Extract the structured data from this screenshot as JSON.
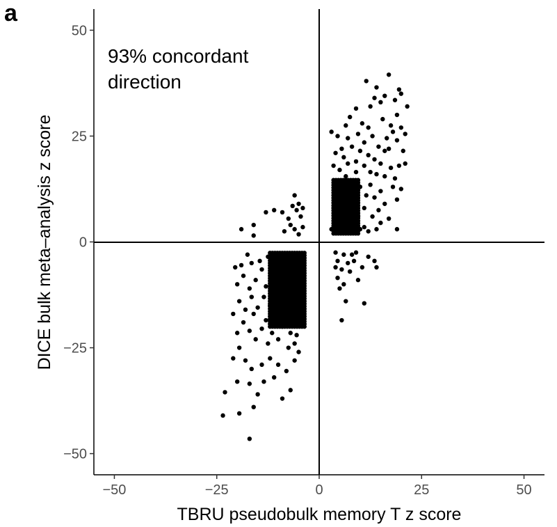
{
  "chart_data": {
    "type": "scatter",
    "panel_label": "a",
    "annotation_lines": [
      "93% concordant",
      "direction"
    ],
    "xlabel": "TBRU pseudobulk memory T z score",
    "ylabel": "DICE bulk meta–analysis z score",
    "xlim": [
      -55,
      55
    ],
    "ylim": [
      -55,
      55
    ],
    "x_ticks": [
      -50,
      -25,
      0,
      25,
      50
    ],
    "x_tick_labels": [
      "−50",
      "−25",
      "0",
      "25",
      "50"
    ],
    "y_ticks": [
      -50,
      -25,
      0,
      25,
      50
    ],
    "y_tick_labels": [
      "−50",
      "−25",
      "0",
      "25",
      "50"
    ],
    "reference_lines": {
      "x": 0,
      "y": 0
    },
    "grid": false,
    "point_color": "#000000",
    "series": [
      {
        "points": [
          [
            17,
            39.5
          ],
          [
            11.5,
            38
          ],
          [
            14,
            36.5
          ],
          [
            19.5,
            36
          ],
          [
            20,
            35
          ],
          [
            21.5,
            32
          ],
          [
            12.5,
            32
          ],
          [
            9,
            31.5
          ],
          [
            13.5,
            34
          ],
          [
            16,
            34.5
          ],
          [
            18.5,
            33.5
          ],
          [
            15,
            33
          ],
          [
            7.5,
            29.5
          ],
          [
            6.5,
            27.5
          ],
          [
            10.5,
            28
          ],
          [
            12,
            27
          ],
          [
            15.5,
            29
          ],
          [
            17.5,
            27.5
          ],
          [
            19,
            30
          ],
          [
            20,
            27
          ],
          [
            21,
            25.5
          ],
          [
            16.5,
            24.5
          ],
          [
            18,
            26
          ],
          [
            3,
            26
          ],
          [
            4.5,
            25
          ],
          [
            7,
            24.5
          ],
          [
            9.5,
            25.5
          ],
          [
            11,
            23.5
          ],
          [
            13,
            25
          ],
          [
            14.5,
            22.5
          ],
          [
            16,
            21.5
          ],
          [
            20.5,
            21.5
          ],
          [
            19,
            24
          ],
          [
            17,
            22
          ],
          [
            4,
            21
          ],
          [
            5.5,
            22
          ],
          [
            6,
            20
          ],
          [
            8,
            22.5
          ],
          [
            10,
            21.5
          ],
          [
            12,
            20.5
          ],
          [
            13.5,
            19.5
          ],
          [
            15,
            18.5
          ],
          [
            17.5,
            17.5
          ],
          [
            19.5,
            18
          ],
          [
            18.5,
            15
          ],
          [
            21,
            18.5
          ],
          [
            3.5,
            18
          ],
          [
            5,
            17
          ],
          [
            7,
            18.5
          ],
          [
            9,
            19
          ],
          [
            11,
            18
          ],
          [
            12.5,
            16.5
          ],
          [
            14,
            16
          ],
          [
            16,
            15.5
          ],
          [
            18,
            13
          ],
          [
            20,
            12.5
          ],
          [
            15,
            12
          ],
          [
            19,
            10
          ],
          [
            16,
            9
          ],
          [
            14.5,
            7.5
          ],
          [
            13,
            6
          ],
          [
            15,
            4.5
          ],
          [
            17,
            5.5
          ],
          [
            19,
            3
          ],
          [
            14,
            3
          ],
          [
            12,
            2.5
          ],
          [
            11,
            3.5
          ],
          [
            -13,
            7
          ],
          [
            -11,
            7.5
          ],
          [
            -9,
            7
          ],
          [
            -19,
            3
          ],
          [
            -16,
            4
          ],
          [
            -16,
            1.5
          ],
          [
            -6,
            11
          ],
          [
            -5,
            9
          ],
          [
            -4.5,
            6
          ],
          [
            -5.5,
            7.5
          ],
          [
            -7,
            4
          ],
          [
            -8.5,
            2.5
          ],
          [
            -4,
            3.5
          ],
          [
            -6,
            3
          ],
          [
            -5,
            1.8
          ],
          [
            -7.5,
            5.5
          ],
          [
            -6.5,
            8.5
          ],
          [
            -4,
            8
          ],
          [
            -23,
            -35.5
          ],
          [
            -23.5,
            -41
          ],
          [
            -19.5,
            -40.5
          ],
          [
            -17,
            -46.5
          ],
          [
            -16,
            -39
          ],
          [
            -15,
            -36
          ],
          [
            -13.5,
            -33
          ],
          [
            -11,
            -32
          ],
          [
            -7,
            -35
          ],
          [
            -9,
            -37
          ],
          [
            -17,
            -33.5
          ],
          [
            -20,
            -33
          ],
          [
            -21,
            -27.5
          ],
          [
            -19.5,
            -25
          ],
          [
            -18,
            -28
          ],
          [
            -16.5,
            -30
          ],
          [
            -14,
            -29
          ],
          [
            -12,
            -27.5
          ],
          [
            -10,
            -29
          ],
          [
            -8,
            -30.5
          ],
          [
            -6,
            -28
          ],
          [
            -5,
            -26
          ],
          [
            -7.5,
            -25
          ],
          [
            -12.5,
            -24
          ],
          [
            -20,
            -21.5
          ],
          [
            -18.5,
            -19
          ],
          [
            -17,
            -21
          ],
          [
            -15.5,
            -23
          ],
          [
            -14,
            -20.5
          ],
          [
            -13,
            -18.5
          ],
          [
            -11.5,
            -21.5
          ],
          [
            -10,
            -23
          ],
          [
            -9,
            -20
          ],
          [
            -7,
            -21.5
          ],
          [
            -5.5,
            -22
          ],
          [
            -6,
            -24
          ],
          [
            -16,
            -17
          ],
          [
            -21,
            -17
          ],
          [
            -19.5,
            -14
          ],
          [
            -18,
            -16
          ],
          [
            -16.5,
            -13
          ],
          [
            -15,
            -15.5
          ],
          [
            -13.5,
            -13
          ],
          [
            -12,
            -15
          ],
          [
            -10.5,
            -17
          ],
          [
            -9.5,
            -13.5
          ],
          [
            -8,
            -16.5
          ],
          [
            -6.5,
            -17.5
          ],
          [
            -5,
            -16.5
          ],
          [
            -7.5,
            -19
          ],
          [
            -20,
            -10
          ],
          [
            -18.5,
            -8
          ],
          [
            -17,
            -11
          ],
          [
            -15.5,
            -9
          ],
          [
            -14,
            -6.5
          ],
          [
            -13,
            -10.5
          ],
          [
            -11.5,
            -8
          ],
          [
            -10,
            -11
          ],
          [
            -9,
            -7
          ],
          [
            -7.5,
            -10
          ],
          [
            -6.5,
            -12
          ],
          [
            -5,
            -11
          ],
          [
            -4.5,
            -8
          ],
          [
            -6,
            -6.5
          ],
          [
            -8.5,
            -4
          ],
          [
            -11,
            -5.5
          ],
          [
            -12.5,
            -3.5
          ],
          [
            -14.5,
            -4.5
          ],
          [
            -16.5,
            -5
          ],
          [
            -19,
            -5.5
          ],
          [
            -20.5,
            -6
          ],
          [
            -4,
            -3
          ],
          [
            -5.5,
            -3.5
          ],
          [
            -7,
            -3
          ],
          [
            -9.5,
            -2.8
          ],
          [
            -17.5,
            -3
          ],
          [
            -10,
            -14
          ],
          [
            -8.5,
            -12.5
          ],
          [
            -7,
            -14.5
          ],
          [
            -5.5,
            -14
          ],
          [
            -4,
            -13
          ],
          [
            -9,
            -9
          ],
          [
            -6.5,
            -8.5
          ],
          [
            -11,
            -12.5
          ],
          [
            4,
            -2.5
          ],
          [
            4.5,
            -4.5
          ],
          [
            5.5,
            -6.5
          ],
          [
            4.5,
            -8.5
          ],
          [
            6,
            -10
          ],
          [
            5,
            -11
          ],
          [
            6.5,
            -14
          ],
          [
            5.5,
            -18.5
          ],
          [
            7.5,
            -7
          ],
          [
            8.5,
            -4.5
          ],
          [
            9.5,
            -9
          ],
          [
            10.5,
            -6
          ],
          [
            8,
            -3
          ],
          [
            12,
            -3.5
          ],
          [
            13.5,
            -4.5
          ],
          [
            14,
            -6
          ],
          [
            11,
            -14.5
          ],
          [
            7,
            -5
          ],
          [
            9,
            -2.5
          ],
          [
            4,
            -6
          ],
          [
            6,
            -3
          ],
          [
            3,
            3
          ],
          [
            4,
            4.5
          ],
          [
            5,
            6.5
          ],
          [
            3.5,
            8
          ],
          [
            6,
            9.5
          ],
          [
            7,
            11
          ],
          [
            5,
            12.5
          ],
          [
            8,
            14
          ],
          [
            6.5,
            15.5
          ],
          [
            9,
            16.5
          ],
          [
            4.5,
            14.5
          ],
          [
            10,
            13
          ],
          [
            11.5,
            11
          ],
          [
            12.5,
            13.5
          ],
          [
            13.5,
            10.5
          ],
          [
            11,
            8
          ],
          [
            9.5,
            6
          ],
          [
            8,
            4
          ],
          [
            6.5,
            3.5
          ],
          [
            10,
            3
          ],
          [
            5.5,
            5
          ],
          [
            7.5,
            7.5
          ]
        ],
        "dense_regions": [
          {
            "x": [
              3.5,
              9.5
            ],
            "y": [
              2,
              15
            ]
          },
          {
            "x": [
              -12,
              -3.5
            ],
            "y": [
              -20,
              -2.5
            ]
          }
        ]
      }
    ]
  }
}
